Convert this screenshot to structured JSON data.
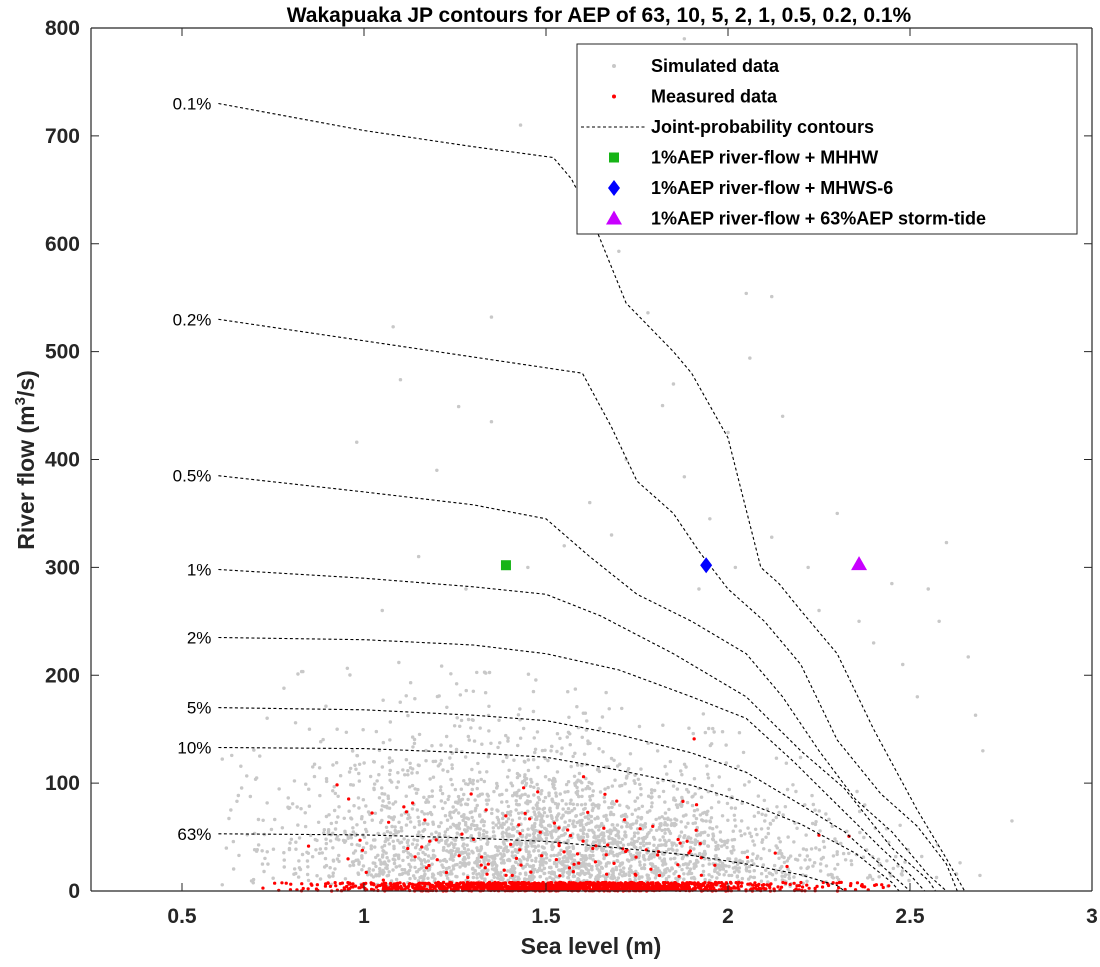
{
  "chart_data": {
    "type": "scatter",
    "title": "Wakapuaka JP contours for AEP of 63,  10,  5,  2,  1,  0.5,  0.2,  0.1%",
    "xlabel": "Sea level (m)",
    "ylabel_main": "River flow (m",
    "ylabel_sup": "3",
    "ylabel_tail": "/s)",
    "xlim": [
      0.25,
      3.0
    ],
    "ylim": [
      0,
      800
    ],
    "xticks": [
      0.5,
      1,
      1.5,
      2,
      2.5,
      3
    ],
    "yticks": [
      0,
      100,
      200,
      300,
      400,
      500,
      600,
      700,
      800
    ],
    "grid": false,
    "legend_position": "top-right",
    "legend": [
      {
        "label": "Simulated data",
        "marker": "dot",
        "color": "#c8c8c8"
      },
      {
        "label": "Measured data",
        "marker": "dot",
        "color": "#ff0000"
      },
      {
        "label": "Joint-probability contours",
        "marker": "dashed-line",
        "color": "#000000"
      },
      {
        "label": "1%AEP river-flow + MHHW",
        "marker": "square",
        "color": "#17b417"
      },
      {
        "label": "1%AEP river-flow + MHWS-6",
        "marker": "diamond",
        "color": "#0000ff"
      },
      {
        "label": "1%AEP river-flow + 63%AEP storm-tide",
        "marker": "triangle",
        "color": "#c800ff"
      }
    ],
    "contours": [
      {
        "name": "0.1%",
        "points": [
          [
            0.6,
            730
          ],
          [
            1.0,
            705
          ],
          [
            1.3,
            690
          ],
          [
            1.52,
            680
          ],
          [
            1.57,
            660
          ],
          [
            1.63,
            620
          ],
          [
            1.72,
            545
          ],
          [
            1.85,
            500
          ],
          [
            1.9,
            480
          ],
          [
            2.0,
            420
          ],
          [
            2.03,
            380
          ],
          [
            2.09,
            300
          ],
          [
            2.14,
            285
          ],
          [
            2.2,
            260
          ],
          [
            2.3,
            220
          ],
          [
            2.4,
            150
          ],
          [
            2.52,
            75
          ],
          [
            2.6,
            30
          ],
          [
            2.65,
            0
          ]
        ]
      },
      {
        "name": "0.2%",
        "points": [
          [
            0.6,
            530
          ],
          [
            1.0,
            510
          ],
          [
            1.3,
            495
          ],
          [
            1.6,
            480
          ],
          [
            1.68,
            430
          ],
          [
            1.75,
            380
          ],
          [
            1.85,
            350
          ],
          [
            1.92,
            315
          ],
          [
            2.0,
            280
          ],
          [
            2.1,
            250
          ],
          [
            2.2,
            210
          ],
          [
            2.3,
            140
          ],
          [
            2.42,
            90
          ],
          [
            2.52,
            60
          ],
          [
            2.6,
            25
          ],
          [
            2.63,
            0
          ]
        ]
      },
      {
        "name": "0.5%",
        "points": [
          [
            0.6,
            385
          ],
          [
            1.0,
            370
          ],
          [
            1.3,
            358
          ],
          [
            1.5,
            345
          ],
          [
            1.62,
            310
          ],
          [
            1.75,
            275
          ],
          [
            1.9,
            250
          ],
          [
            2.05,
            220
          ],
          [
            2.15,
            180
          ],
          [
            2.25,
            130
          ],
          [
            2.35,
            85
          ],
          [
            2.45,
            55
          ],
          [
            2.55,
            15
          ],
          [
            2.6,
            0
          ]
        ]
      },
      {
        "name": "1%",
        "points": [
          [
            0.6,
            298
          ],
          [
            1.0,
            290
          ],
          [
            1.3,
            282
          ],
          [
            1.5,
            275
          ],
          [
            1.65,
            255
          ],
          [
            1.85,
            220
          ],
          [
            2.05,
            180
          ],
          [
            2.2,
            130
          ],
          [
            2.32,
            95
          ],
          [
            2.45,
            40
          ],
          [
            2.55,
            10
          ],
          [
            2.57,
            0
          ]
        ]
      },
      {
        "name": "2%",
        "points": [
          [
            0.6,
            235
          ],
          [
            1.0,
            233
          ],
          [
            1.3,
            228
          ],
          [
            1.5,
            220
          ],
          [
            1.7,
            205
          ],
          [
            1.9,
            180
          ],
          [
            2.05,
            160
          ],
          [
            2.18,
            120
          ],
          [
            2.3,
            80
          ],
          [
            2.42,
            40
          ],
          [
            2.5,
            15
          ],
          [
            2.54,
            0
          ]
        ]
      },
      {
        "name": "5%",
        "points": [
          [
            0.6,
            170
          ],
          [
            1.0,
            168
          ],
          [
            1.3,
            163
          ],
          [
            1.5,
            158
          ],
          [
            1.7,
            145
          ],
          [
            1.9,
            128
          ],
          [
            2.05,
            110
          ],
          [
            2.2,
            80
          ],
          [
            2.32,
            55
          ],
          [
            2.45,
            15
          ],
          [
            2.5,
            0
          ]
        ]
      },
      {
        "name": "10%",
        "points": [
          [
            0.6,
            133
          ],
          [
            1.0,
            132
          ],
          [
            1.3,
            128
          ],
          [
            1.5,
            124
          ],
          [
            1.7,
            112
          ],
          [
            1.9,
            98
          ],
          [
            2.05,
            82
          ],
          [
            2.2,
            62
          ],
          [
            2.35,
            35
          ],
          [
            2.45,
            8
          ],
          [
            2.47,
            0
          ]
        ]
      },
      {
        "name": "63%",
        "points": [
          [
            0.6,
            53
          ],
          [
            1.0,
            52
          ],
          [
            1.3,
            49
          ],
          [
            1.5,
            46
          ],
          [
            1.7,
            40
          ],
          [
            1.9,
            33
          ],
          [
            2.05,
            25
          ],
          [
            2.2,
            15
          ],
          [
            2.3,
            5
          ],
          [
            2.32,
            0
          ]
        ]
      }
    ],
    "points": [
      {
        "series": "1%AEP river-flow + MHHW",
        "x": 1.39,
        "y": 302
      },
      {
        "series": "1%AEP river-flow + MHWS-6",
        "x": 1.94,
        "y": 302
      },
      {
        "series": "1%AEP river-flow + 63%AEP storm-tide",
        "x": 2.36,
        "y": 303
      }
    ],
    "simulated_outliers": [
      [
        1.43,
        710
      ],
      [
        1.88,
        790
      ],
      [
        1.7,
        593
      ],
      [
        2.05,
        554
      ],
      [
        2.12,
        551
      ],
      [
        1.35,
        532
      ],
      [
        1.08,
        523
      ],
      [
        1.78,
        536
      ],
      [
        2.06,
        494
      ],
      [
        1.85,
        470
      ],
      [
        1.1,
        474
      ],
      [
        1.82,
        450
      ],
      [
        1.26,
        449
      ],
      [
        0.98,
        416
      ],
      [
        1.35,
        435
      ],
      [
        2.0,
        425
      ],
      [
        2.15,
        440
      ],
      [
        1.72,
        400
      ],
      [
        1.2,
        390
      ],
      [
        1.88,
        384
      ],
      [
        2.3,
        350
      ],
      [
        2.12,
        328
      ],
      [
        2.55,
        280
      ],
      [
        2.45,
        285
      ],
      [
        2.6,
        323
      ],
      [
        2.66,
        217
      ],
      [
        2.58,
        250
      ],
      [
        2.68,
        163
      ],
      [
        2.78,
        65
      ],
      [
        2.7,
        130
      ],
      [
        2.52,
        180
      ],
      [
        1.55,
        320
      ],
      [
        1.68,
        330
      ],
      [
        1.95,
        345
      ],
      [
        2.22,
        300
      ],
      [
        0.78,
        188
      ],
      [
        1.05,
        260
      ],
      [
        1.15,
        310
      ],
      [
        0.85,
        150
      ],
      [
        2.4,
        230
      ],
      [
        2.48,
        210
      ],
      [
        2.25,
        260
      ],
      [
        1.62,
        360
      ],
      [
        1.45,
        300
      ],
      [
        1.28,
        280
      ],
      [
        2.02,
        300
      ],
      [
        1.92,
        280
      ],
      [
        2.36,
        250
      ]
    ]
  }
}
